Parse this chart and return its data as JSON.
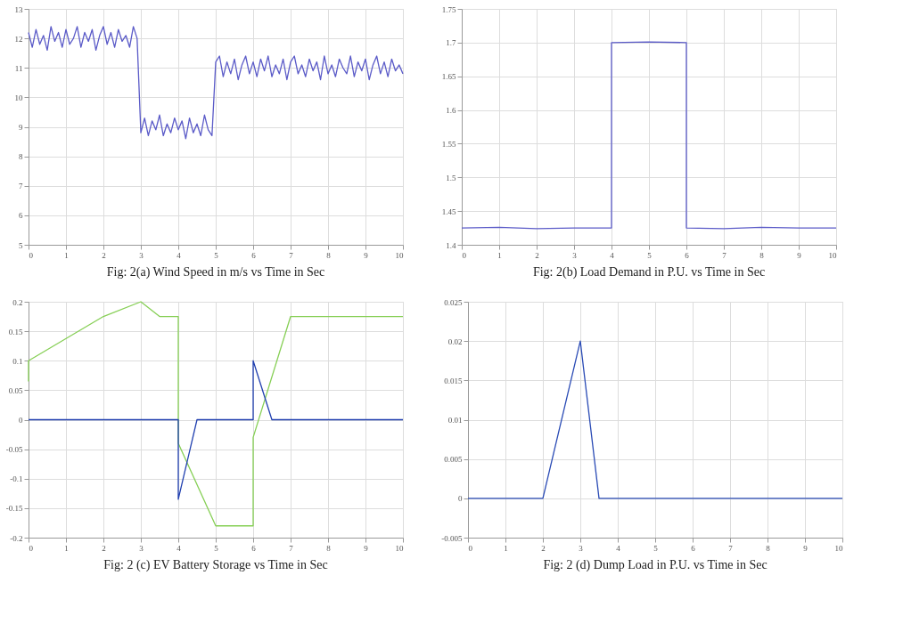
{
  "chart_data": [
    {
      "type": "line",
      "title": "Fig: 2(a) Wind Speed in m/s vs Time in Sec",
      "xlim": [
        0,
        10
      ],
      "xticks": [
        0,
        1,
        2,
        3,
        4,
        5,
        6,
        7,
        8,
        9,
        10
      ],
      "ylim": [
        5,
        13
      ],
      "yticks": [
        5,
        6,
        7,
        8,
        9,
        10,
        11,
        12,
        13
      ],
      "grid": true,
      "series": [
        {
          "color": "#5b5bc8",
          "x": [
            0,
            0.1,
            0.2,
            0.3,
            0.4,
            0.5,
            0.6,
            0.7,
            0.8,
            0.9,
            1,
            1.1,
            1.2,
            1.3,
            1.4,
            1.5,
            1.6,
            1.7,
            1.8,
            1.9,
            2,
            2.1,
            2.2,
            2.3,
            2.4,
            2.5,
            2.6,
            2.7,
            2.8,
            2.9,
            3,
            3.1,
            3.2,
            3.3,
            3.4,
            3.5,
            3.6,
            3.7,
            3.8,
            3.9,
            4,
            4.1,
            4.2,
            4.3,
            4.4,
            4.5,
            4.6,
            4.7,
            4.8,
            4.9,
            5,
            5.1,
            5.2,
            5.3,
            5.4,
            5.5,
            5.6,
            5.7,
            5.8,
            5.9,
            6,
            6.1,
            6.2,
            6.3,
            6.4,
            6.5,
            6.6,
            6.7,
            6.8,
            6.9,
            7,
            7.1,
            7.2,
            7.3,
            7.4,
            7.5,
            7.6,
            7.7,
            7.8,
            7.9,
            8,
            8.1,
            8.2,
            8.3,
            8.4,
            8.5,
            8.6,
            8.7,
            8.8,
            8.9,
            9,
            9.1,
            9.2,
            9.3,
            9.4,
            9.5,
            9.6,
            9.7,
            9.8,
            9.9,
            10
          ],
          "values": [
            12.2,
            11.7,
            12.3,
            11.8,
            12.1,
            11.6,
            12.4,
            11.9,
            12.2,
            11.7,
            12.3,
            11.8,
            12.0,
            12.4,
            11.7,
            12.2,
            11.9,
            12.3,
            11.6,
            12.1,
            12.4,
            11.8,
            12.2,
            11.7,
            12.3,
            11.9,
            12.1,
            11.7,
            12.4,
            12.0,
            8.8,
            9.3,
            8.7,
            9.2,
            8.9,
            9.4,
            8.7,
            9.1,
            8.8,
            9.3,
            8.9,
            9.2,
            8.6,
            9.3,
            8.8,
            9.1,
            8.7,
            9.4,
            8.9,
            8.7,
            11.2,
            11.4,
            10.7,
            11.2,
            10.8,
            11.3,
            10.6,
            11.1,
            11.4,
            10.8,
            11.2,
            10.7,
            11.3,
            10.9,
            11.4,
            10.7,
            11.1,
            10.8,
            11.3,
            10.6,
            11.2,
            11.4,
            10.8,
            11.1,
            10.7,
            11.3,
            10.9,
            11.2,
            10.6,
            11.4,
            10.8,
            11.1,
            10.7,
            11.3,
            11.0,
            10.8,
            11.4,
            10.7,
            11.2,
            10.9,
            11.3,
            10.6,
            11.1,
            11.4,
            10.8,
            11.2,
            10.7,
            11.3,
            10.9,
            11.1,
            10.8
          ]
        }
      ]
    },
    {
      "type": "line",
      "title": "Fig: 2(b) Load Demand in P.U. vs Time in Sec",
      "xlim": [
        0,
        10
      ],
      "xticks": [
        0,
        1,
        2,
        3,
        4,
        5,
        6,
        7,
        8,
        9,
        10
      ],
      "ylim": [
        1.4,
        1.75
      ],
      "yticks": [
        1.4,
        1.45,
        1.5,
        1.55,
        1.6,
        1.65,
        1.7,
        1.75
      ],
      "grid": true,
      "series": [
        {
          "color": "#5b5bc8",
          "x": [
            0,
            1,
            2,
            3,
            4,
            4,
            5,
            6,
            6,
            7,
            8,
            9,
            10
          ],
          "values": [
            1.425,
            1.426,
            1.424,
            1.425,
            1.425,
            1.7,
            1.701,
            1.7,
            1.425,
            1.424,
            1.426,
            1.425,
            1.425
          ]
        }
      ]
    },
    {
      "type": "line",
      "title": "Fig: 2 (c) EV Battery Storage vs Time in Sec",
      "xlim": [
        0,
        10
      ],
      "xticks": [
        0,
        1,
        2,
        3,
        4,
        5,
        6,
        7,
        8,
        9,
        10
      ],
      "ylim": [
        -0.2,
        0.2
      ],
      "yticks": [
        -0.2,
        -0.15,
        -0.1,
        -0.05,
        0,
        0.05,
        0.1,
        0.15,
        0.2
      ],
      "grid": true,
      "series": [
        {
          "color": "#86cf55",
          "x": [
            0,
            0,
            2,
            3,
            3.5,
            4,
            4,
            5,
            6,
            6,
            7,
            10
          ],
          "values": [
            0.065,
            0.1,
            0.175,
            0.2,
            0.175,
            0.175,
            -0.04,
            -0.18,
            -0.18,
            -0.03,
            0.175,
            0.175
          ]
        },
        {
          "color": "#2140b0",
          "x": [
            0,
            1,
            2,
            3,
            4,
            4,
            4.5,
            5,
            6,
            6,
            6.5,
            7,
            8,
            9,
            10
          ],
          "values": [
            0,
            0,
            0,
            0,
            0,
            -0.135,
            0,
            0,
            0,
            0.1,
            0,
            0,
            0,
            0,
            0
          ]
        }
      ]
    },
    {
      "type": "line",
      "title": "Fig: 2 (d) Dump Load in P.U. vs Time in Sec",
      "xlim": [
        0,
        10
      ],
      "xticks": [
        0,
        1,
        2,
        3,
        4,
        5,
        6,
        7,
        8,
        9,
        10
      ],
      "ylim": [
        -0.005,
        0.025
      ],
      "yticks": [
        -0.005,
        0,
        0.005,
        0.01,
        0.015,
        0.02,
        0.025
      ],
      "grid": true,
      "series": [
        {
          "color": "#2a4bb5",
          "x": [
            0,
            2,
            3,
            3.5,
            10
          ],
          "values": [
            0,
            0,
            0.02,
            0,
            0
          ]
        }
      ]
    }
  ]
}
